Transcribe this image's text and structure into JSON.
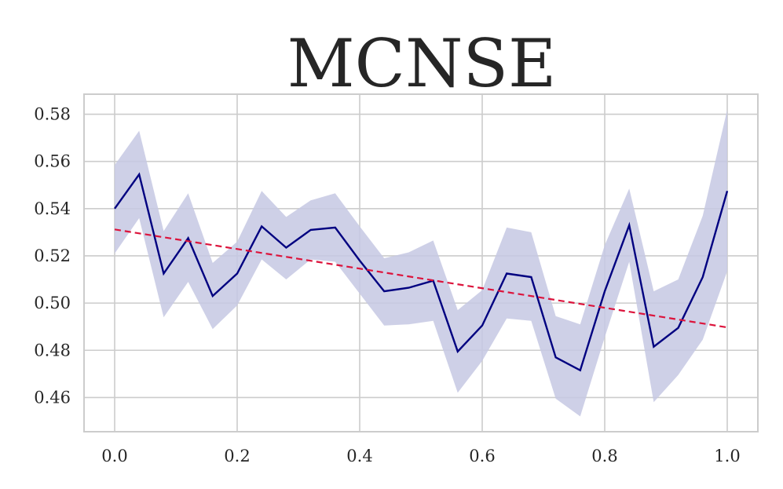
{
  "chart_data": {
    "type": "line",
    "title": "MCNSE",
    "xlabel": "",
    "ylabel": "",
    "xlim": [
      -0.05,
      1.05
    ],
    "ylim": [
      0.4455,
      0.5885
    ],
    "grid": true,
    "x_ticks": [
      {
        "value": 0.0,
        "label": "0.0"
      },
      {
        "value": 0.2,
        "label": "0.2"
      },
      {
        "value": 0.4,
        "label": "0.4"
      },
      {
        "value": 0.6,
        "label": "0.6"
      },
      {
        "value": 0.8,
        "label": "0.8"
      },
      {
        "value": 1.0,
        "label": "1.0"
      }
    ],
    "y_ticks": [
      {
        "value": 0.46,
        "label": "0.46"
      },
      {
        "value": 0.48,
        "label": "0.48"
      },
      {
        "value": 0.5,
        "label": "0.50"
      },
      {
        "value": 0.52,
        "label": "0.52"
      },
      {
        "value": 0.54,
        "label": "0.54"
      },
      {
        "value": 0.56,
        "label": "0.56"
      },
      {
        "value": 0.58,
        "label": "0.58"
      }
    ],
    "x": [
      0.0,
      0.04,
      0.08,
      0.12,
      0.16,
      0.2,
      0.24,
      0.28,
      0.32,
      0.36,
      0.4,
      0.44,
      0.48,
      0.52,
      0.56,
      0.6,
      0.64,
      0.68,
      0.72,
      0.76,
      0.8,
      0.84,
      0.88,
      0.92,
      0.96,
      1.0
    ],
    "series": [
      {
        "type": "line",
        "color": "#000080",
        "values": [
          0.54,
          0.5545,
          0.5125,
          0.5275,
          0.503,
          0.5125,
          0.5325,
          0.5235,
          0.531,
          0.532,
          0.518,
          0.505,
          0.5065,
          0.5095,
          0.4795,
          0.4905,
          0.5125,
          0.511,
          0.477,
          0.4715,
          0.505,
          0.533,
          0.4815,
          0.4895,
          0.511,
          0.5475
        ]
      },
      {
        "type": "band",
        "color": "#c6c8e3",
        "upper": [
          0.5585,
          0.573,
          0.5305,
          0.5465,
          0.517,
          0.526,
          0.5475,
          0.5365,
          0.5435,
          0.5465,
          0.5325,
          0.519,
          0.5215,
          0.5265,
          0.497,
          0.5055,
          0.532,
          0.53,
          0.4945,
          0.491,
          0.5245,
          0.5485,
          0.505,
          0.51,
          0.537,
          0.582
        ],
        "lower": [
          0.521,
          0.536,
          0.494,
          0.509,
          0.489,
          0.499,
          0.5185,
          0.51,
          0.5185,
          0.5175,
          0.504,
          0.4905,
          0.491,
          0.4925,
          0.462,
          0.4755,
          0.4935,
          0.4925,
          0.4595,
          0.452,
          0.4855,
          0.5175,
          0.458,
          0.4695,
          0.4845,
          0.5135
        ]
      },
      {
        "type": "trend",
        "color": "#dc143c",
        "dash": "dashed",
        "x": [
          0.0,
          1.0
        ],
        "values": [
          0.5312,
          0.4897
        ]
      }
    ]
  }
}
